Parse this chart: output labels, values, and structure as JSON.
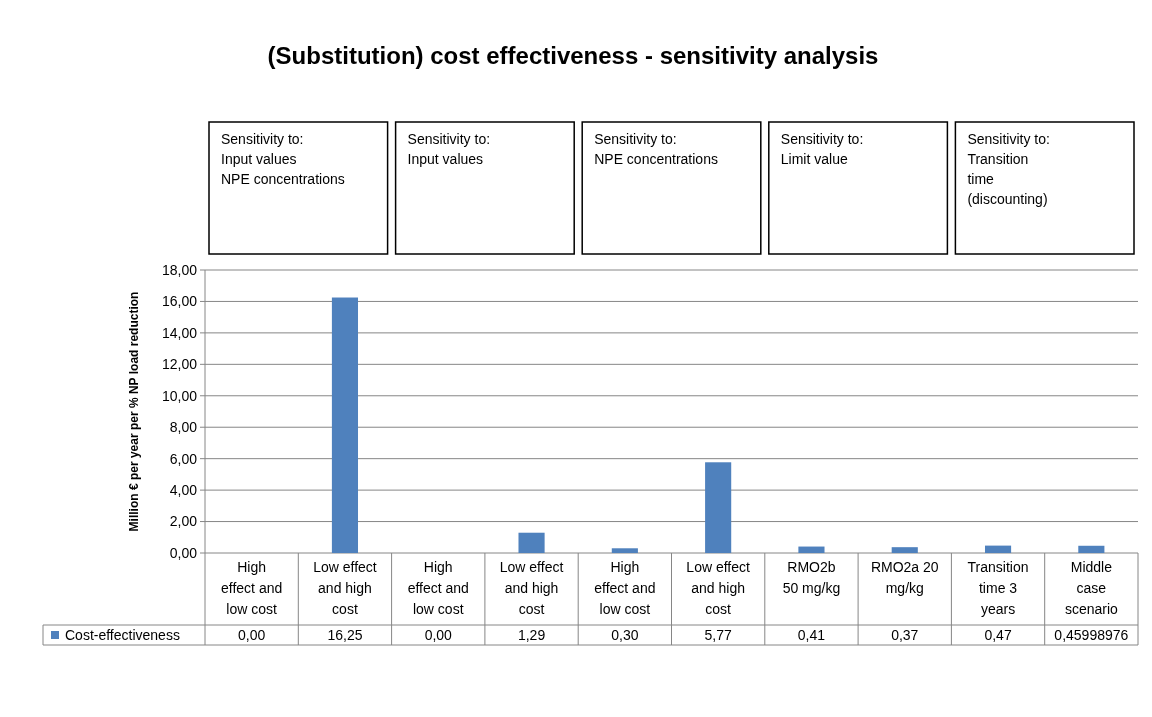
{
  "chart_data": {
    "type": "bar",
    "title": "(Substitution) cost effectiveness - sensitivity analysis",
    "ylabel": "Million € per year per % NP load reduction",
    "categories": [
      "High\neffect and\nlow cost",
      "Low effect\nand high\ncost",
      "High\neffect and\nlow cost",
      "Low effect\nand high\ncost",
      "High\neffect and\nlow cost",
      "Low effect\nand high\ncost",
      "RMO2b\n50 mg/kg",
      "RMO2a 20\nmg/kg",
      "Transition\ntime 3\nyears",
      "Middle\ncase\nscenario"
    ],
    "series": [
      {
        "name": "Cost-effectiveness",
        "color": "#4f81bd",
        "values": [
          0.0,
          16.25,
          0.0,
          1.29,
          0.3,
          5.77,
          0.41,
          0.37,
          0.47,
          0.45998976
        ],
        "value_labels": [
          "0,00",
          "16,25",
          "0,00",
          "1,29",
          "0,30",
          "5,77",
          "0,41",
          "0,37",
          "0,47",
          "0,45998976"
        ]
      }
    ],
    "ylim": [
      0,
      18
    ],
    "yticks": [
      {
        "value": 0,
        "label": "0,00"
      },
      {
        "value": 2,
        "label": "2,00"
      },
      {
        "value": 4,
        "label": "4,00"
      },
      {
        "value": 6,
        "label": "6,00"
      },
      {
        "value": 8,
        "label": "8,00"
      },
      {
        "value": 10,
        "label": "10,00"
      },
      {
        "value": 12,
        "label": "12,00"
      },
      {
        "value": 14,
        "label": "14,00"
      },
      {
        "value": 16,
        "label": "16,00"
      },
      {
        "value": 18,
        "label": "18,00"
      }
    ],
    "grid": "y",
    "legend": "bottom",
    "annotations": [
      "Sensitivity to:\nInput values\nNPE concentrations",
      "Sensitivity to:\nInput values",
      "Sensitivity to:\nNPE concentrations",
      "Sensitivity to:\nLimit value",
      "Sensitivity to:\nTransition\ntime\n(discounting)"
    ]
  }
}
